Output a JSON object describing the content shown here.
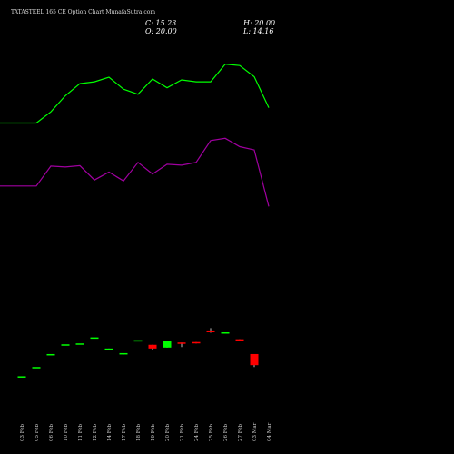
{
  "header": {
    "title": "TATASTEEL 165 CE Option Chart MunafaSutra.com",
    "close": "C: 15.23",
    "open": "O: 20.00",
    "high": "H: 20.00",
    "low": "L: 14.16"
  },
  "chart_data": {
    "type": "candlestick",
    "categories": [
      "03 Feb",
      "05 Feb",
      "06 Feb",
      "10 Feb",
      "11 Feb",
      "12 Feb",
      "14 Feb",
      "17 Feb",
      "18 Feb",
      "19 Feb",
      "20 Feb",
      "21 Feb",
      "24 Feb",
      "25 Feb",
      "26 Feb",
      "27 Feb",
      "03 Mar",
      "04 Mar"
    ],
    "candles": [
      {
        "open": 5.6,
        "close": 5.6,
        "high": 5.6,
        "low": 5.6,
        "color": "#00ff00"
      },
      {
        "open": 7.6,
        "close": 7.6,
        "high": 7.6,
        "low": 7.6,
        "color": "#00ff00"
      },
      {
        "open": 10.4,
        "close": 10.4,
        "high": 10.4,
        "low": 10.4,
        "color": "#00ff00"
      },
      {
        "open": 12.5,
        "close": 12.5,
        "high": 12.5,
        "low": 12.5,
        "color": "#00ff00"
      },
      {
        "open": 12.7,
        "close": 12.7,
        "high": 12.7,
        "low": 12.7,
        "color": "#00ff00"
      },
      {
        "open": 14.0,
        "close": 14.0,
        "high": 14.0,
        "low": 14.0,
        "color": "#00ff00"
      },
      {
        "open": 11.3,
        "close": 11.6,
        "high": 11.6,
        "low": 11.3,
        "color": "#00ff00"
      },
      {
        "open": 10.4,
        "close": 10.6,
        "high": 10.6,
        "low": 10.3,
        "color": "#00ff00"
      },
      {
        "open": 13.4,
        "close": 13.4,
        "high": 13.4,
        "low": 13.4,
        "color": "#00ff00"
      },
      {
        "open": 12.4,
        "close": 11.6,
        "high": 12.4,
        "low": 11.3,
        "color": "#ff0000"
      },
      {
        "open": 11.8,
        "close": 13.3,
        "high": 13.3,
        "low": 11.8,
        "color": "#00ff00"
      },
      {
        "open": 12.9,
        "close": 12.7,
        "high": 12.9,
        "low": 11.9,
        "color": "#ff0000"
      },
      {
        "open": 13.0,
        "close": 12.7,
        "high": 13.0,
        "low": 12.7,
        "color": "#ff0000"
      },
      {
        "open": 15.5,
        "close": 15.1,
        "high": 16.0,
        "low": 15.0,
        "color": "#ff0000"
      },
      {
        "open": 15.1,
        "close": 15.1,
        "high": 15.1,
        "low": 15.1,
        "color": "#00ff00"
      },
      {
        "open": 13.6,
        "close": 13.4,
        "high": 13.6,
        "low": 13.4,
        "color": "#ff0000"
      },
      {
        "open": 10.4,
        "close": 8.0,
        "high": 10.4,
        "low": 7.6,
        "color": "#ff0000"
      },
      {
        "open": null,
        "close": null,
        "high": null,
        "low": null,
        "color": null
      }
    ],
    "series": [
      {
        "color": "#00ff00",
        "values": [
          60.3,
          60.3,
          62.7,
          66.2,
          68.8,
          69.2,
          70.2,
          67.6,
          66.5,
          69.8,
          67.9,
          69.6,
          69.2,
          69.2,
          73.0,
          72.7,
          70.3,
          63.6
        ]
      },
      {
        "color": "#a000a0",
        "values": [
          46.7,
          46.7,
          51.0,
          50.8,
          51.1,
          48.0,
          49.7,
          47.8,
          51.8,
          49.3,
          51.4,
          51.2,
          51.8,
          56.5,
          57.0,
          55.2,
          54.5,
          42.3
        ]
      }
    ],
    "ylim": [
      0,
      80
    ]
  }
}
